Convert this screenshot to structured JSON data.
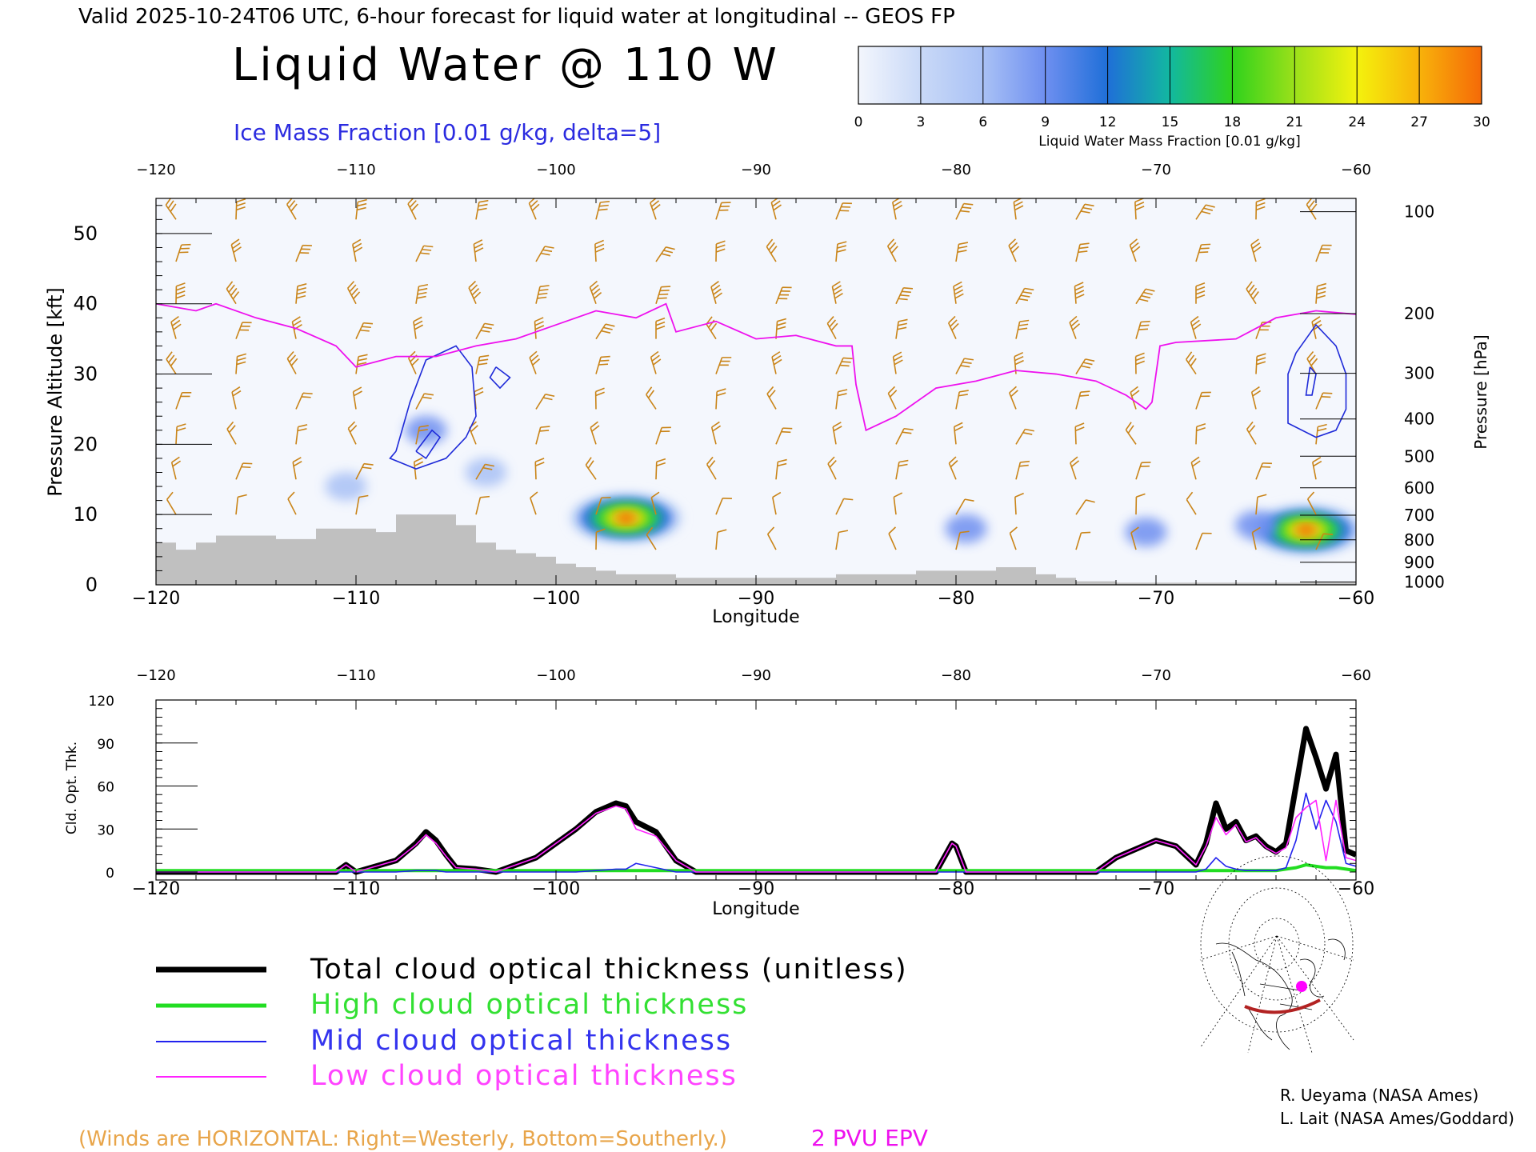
{
  "header": {
    "valid_line": "Valid 2025-10-24T06 UTC, 6-hour forecast for liquid water at longitudinal -- GEOS FP",
    "main_title": "Liquid Water @ 110 W",
    "subtitle": "Ice Mass Fraction [0.01 g/kg, delta=5]"
  },
  "colorbar": {
    "ticks": [
      "0",
      "3",
      "6",
      "9",
      "12",
      "15",
      "18",
      "21",
      "24",
      "27",
      "30"
    ],
    "label": "Liquid Water Mass Fraction [0.01 g/kg]",
    "colors": [
      "#f3f6fd",
      "#c9d9f7",
      "#a9c1f5",
      "#6e8ff0",
      "#1f6fd8",
      "#12b8a0",
      "#2fd21c",
      "#9be01a",
      "#f4f20d",
      "#f8b20a",
      "#f56a08"
    ]
  },
  "legend": {
    "total": "Total cloud optical thickness (unitless)",
    "high": "High cloud optical thickness",
    "mid": "Mid cloud optical thickness",
    "low": "Low cloud optical thickness",
    "total_color": "#000000",
    "high_color": "#22dd22",
    "mid_color": "#2222ee",
    "low_color": "#ff22ff"
  },
  "footer": {
    "winds_note": "(Winds are HORIZONTAL: Right=Westerly, Bottom=Southerly.)",
    "epv_label": "2 PVU EPV",
    "credit1": "R. Ueyama (NASA Ames)",
    "credit2": "L. Lait (NASA Ames/Goddard)"
  },
  "chart_data": [
    {
      "type": "heatmap",
      "title": "Liquid Water @ 110 W",
      "subtitle": "Ice Mass Fraction [0.01 g/kg, delta=5]",
      "xlabel": "Longitude",
      "ylabel": "Pressure Altitude [kft]",
      "ylabel_right": "Pressure [hPa]",
      "xlim": [
        -120,
        -60
      ],
      "ylim": [
        0,
        55
      ],
      "x_ticks": [
        -120,
        -110,
        -100,
        -90,
        -80,
        -70,
        -60
      ],
      "y_ticks": [
        0,
        10,
        20,
        30,
        40,
        50
      ],
      "pressure_ticks": [
        "100",
        "200",
        "300",
        "400",
        "500",
        "600",
        "700",
        "800",
        "900",
        "1000"
      ],
      "pressure_tick_kft": [
        53.1,
        38.6,
        30.1,
        23.6,
        18.3,
        13.8,
        9.9,
        6.4,
        3.2,
        0.4
      ],
      "liquid_water_blobs": [
        {
          "lon": -96.5,
          "kft": 9.5,
          "peak": 30
        },
        {
          "lon": -62.5,
          "kft": 7.8,
          "peak": 30
        },
        {
          "lon": -106.5,
          "kft": 22,
          "peak": 5
        },
        {
          "lon": -110.5,
          "kft": 14,
          "peak": 4
        },
        {
          "lon": -103.5,
          "kft": 16,
          "peak": 4
        },
        {
          "lon": -79.5,
          "kft": 8,
          "peak": 5
        },
        {
          "lon": -70.5,
          "kft": 7.5,
          "peak": 5
        },
        {
          "lon": -65,
          "kft": 8.5,
          "peak": 5
        }
      ],
      "epv_2pvu_line": {
        "lon": [
          -120,
          -118,
          -117,
          -115,
          -113,
          -111,
          -110,
          -108,
          -106,
          -104,
          -102,
          -100,
          -98,
          -96,
          -94.5,
          -94,
          -92,
          -90,
          -88,
          -86,
          -85.2,
          -85,
          -84.5,
          -83,
          -81,
          -79,
          -77,
          -75,
          -73,
          -71.5,
          -70.5,
          -70.2,
          -69.8,
          -69,
          -66,
          -64,
          -63,
          -62,
          -60
        ],
        "kft": [
          40,
          39,
          40,
          38,
          36.5,
          34,
          31,
          32.5,
          32.5,
          34,
          35,
          37,
          39,
          38,
          40,
          36,
          37.5,
          35,
          35.5,
          34,
          34,
          28.5,
          22,
          24,
          28,
          29,
          30.5,
          30,
          29,
          27,
          25,
          26,
          34,
          34.5,
          35,
          38,
          38.5,
          39,
          38.5
        ]
      },
      "ice_contours": [
        {
          "lon": [
            -108,
            -107.3,
            -106.5,
            -105,
            -104.2,
            -104,
            -104.5,
            -105.5,
            -107,
            -108.3,
            -108
          ],
          "kft": [
            19,
            26,
            32,
            34,
            31,
            24,
            21,
            18,
            16.5,
            18,
            19
          ]
        },
        {
          "lon": [
            -107,
            -106.2,
            -105.8,
            -106.5,
            -107
          ],
          "kft": [
            19,
            22,
            21,
            18,
            19
          ]
        },
        {
          "lon": [
            -103,
            -102.3,
            -102.8,
            -103.3,
            -103
          ],
          "kft": [
            31,
            29.5,
            28,
            29.5,
            31
          ]
        },
        {
          "lon": [
            -63,
            -62,
            -61,
            -60.5,
            -60.5,
            -61,
            -62,
            -63.4,
            -63.4,
            -63
          ],
          "kft": [
            33,
            37,
            34,
            30,
            25,
            22,
            21,
            23,
            30,
            33
          ]
        },
        {
          "lon": [
            -62.3,
            -62,
            -62.2,
            -62.5,
            -62.3
          ],
          "kft": [
            31,
            30,
            27,
            27,
            31
          ]
        }
      ],
      "terrain": {
        "lon": [
          -120,
          -119,
          -118,
          -117,
          -116,
          -114,
          -112,
          -110,
          -109,
          -108,
          -106,
          -105,
          -104,
          -103,
          -102,
          -101,
          -100,
          -99,
          -98,
          -97,
          -96,
          -94,
          -92,
          -90,
          -88,
          -86,
          -84,
          -82,
          -80,
          -78,
          -76,
          -75,
          -74,
          -72,
          -70,
          -68,
          -66,
          -64,
          -62,
          -60
        ],
        "kft": [
          6,
          5,
          6,
          7,
          7,
          6.5,
          8,
          8,
          7.5,
          10,
          10,
          8.5,
          6,
          5,
          4.5,
          4,
          3,
          2.5,
          2,
          1.5,
          1.5,
          1,
          1,
          1,
          1,
          1.5,
          1.5,
          2,
          2,
          2.5,
          1.5,
          1,
          0.5,
          0.3,
          0.3,
          0.3,
          0.3,
          0.3,
          0.3,
          0.3
        ]
      },
      "winds": {
        "lon": [
          -119,
          -116,
          -113,
          -110,
          -107,
          -104,
          -101,
          -98,
          -95,
          -92,
          -89,
          -86,
          -83,
          -80,
          -77,
          -74,
          -71,
          -68,
          -65,
          -62
        ],
        "kft": [
          52,
          46,
          40,
          35,
          30,
          25,
          20,
          15,
          10,
          5
        ],
        "speed_knots_by_level": [
          25,
          30,
          35,
          30,
          25,
          20,
          15,
          15,
          10,
          10
        ]
      }
    },
    {
      "type": "line",
      "xlabel": "Longitude",
      "ylabel": "Cld. Opt. Thk.",
      "xlim": [
        -120,
        -60
      ],
      "ylim": [
        0,
        120
      ],
      "x_ticks": [
        -120,
        -110,
        -100,
        -90,
        -80,
        -70,
        -60
      ],
      "y_ticks": [
        0,
        30,
        60,
        90,
        120
      ],
      "x": [
        -120,
        -111,
        -110.5,
        -110,
        -108,
        -107,
        -106.5,
        -106,
        -105.5,
        -105,
        -104,
        -103,
        -101,
        -99,
        -98,
        -97,
        -96.5,
        -96,
        -95,
        -94,
        -93,
        -81,
        -80.2,
        -80,
        -79.5,
        -78,
        -73,
        -72,
        -70,
        -69,
        -68,
        -67.5,
        -67,
        -66.5,
        -66,
        -65.5,
        -65,
        -64.5,
        -64,
        -63.5,
        -63,
        -62.5,
        -62,
        -61.5,
        -61,
        -60.5,
        -60
      ],
      "series": [
        {
          "name": "Total cloud optical thickness (unitless)",
          "values": [
            0,
            0,
            5,
            0,
            8,
            20,
            28,
            22,
            12,
            3,
            2,
            0,
            10,
            30,
            42,
            48,
            46,
            35,
            28,
            8,
            0,
            0,
            20,
            18,
            0,
            0,
            0,
            10,
            22,
            18,
            5,
            20,
            48,
            30,
            35,
            22,
            25,
            18,
            14,
            20,
            60,
            100,
            80,
            58,
            82,
            15,
            12
          ]
        },
        {
          "name": "High cloud optical thickness",
          "values": [
            1,
            1,
            1,
            1,
            1,
            1,
            1,
            1,
            1,
            1,
            1,
            1,
            1,
            1,
            1,
            1,
            1,
            1,
            1,
            1,
            1,
            1,
            1,
            1,
            1,
            1,
            1,
            1,
            1,
            1,
            1,
            1,
            1,
            1,
            1,
            1,
            1,
            1,
            1,
            2,
            3,
            5,
            4,
            3,
            3,
            2,
            1
          ]
        },
        {
          "name": "Mid cloud optical thickness",
          "values": [
            0,
            0,
            0,
            0,
            0,
            1,
            1,
            1,
            0,
            0,
            0,
            0,
            0,
            0,
            1,
            2,
            2,
            6,
            3,
            0,
            0,
            0,
            0,
            0,
            0,
            0,
            0,
            0,
            0,
            0,
            0,
            2,
            10,
            4,
            2,
            1,
            1,
            1,
            1,
            3,
            22,
            55,
            30,
            50,
            35,
            6,
            4
          ]
        },
        {
          "name": "Low cloud optical thickness",
          "values": [
            0,
            0,
            5,
            0,
            8,
            19,
            26,
            20,
            11,
            3,
            2,
            0,
            10,
            30,
            41,
            46,
            44,
            30,
            25,
            8,
            0,
            0,
            20,
            18,
            0,
            0,
            0,
            10,
            22,
            18,
            5,
            18,
            38,
            26,
            33,
            21,
            24,
            17,
            13,
            17,
            38,
            45,
            50,
            8,
            50,
            10,
            8
          ]
        }
      ]
    }
  ]
}
